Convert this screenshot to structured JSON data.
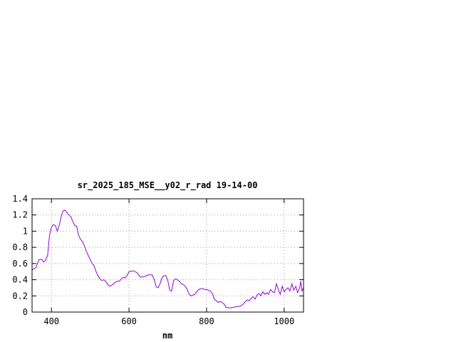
{
  "chart_data": {
    "type": "line",
    "title": "sr_2025_185_MSE__y02_r_rad 19-14-00",
    "xlabel": "nm",
    "ylabel": "",
    "xlim": [
      350,
      1050
    ],
    "ylim": [
      0,
      1.4
    ],
    "x_ticks": [
      400,
      600,
      800,
      1000
    ],
    "y_ticks": [
      0,
      0.2,
      0.4,
      0.6,
      0.8,
      1,
      1.2,
      1.4
    ],
    "x_tick_labels": [
      "400",
      "600",
      "800",
      "1000"
    ],
    "y_tick_labels": [
      "0",
      "0.2",
      "0.4",
      "0.6",
      "0.8",
      "1",
      "1.2",
      "1.4"
    ],
    "grid": true,
    "line_color": "#9400d3",
    "series": [
      {
        "x": [
          350,
          360,
          368,
          375,
          380,
          385,
          390,
          395,
          400,
          405,
          410,
          415,
          420,
          425,
          430,
          435,
          440,
          445,
          450,
          455,
          460,
          465,
          470,
          475,
          480,
          485,
          490,
          495,
          500,
          505,
          510,
          515,
          520,
          525,
          530,
          535,
          540,
          545,
          550,
          555,
          560,
          565,
          570,
          575,
          580,
          585,
          590,
          595,
          600,
          610,
          620,
          630,
          640,
          650,
          660,
          665,
          670,
          675,
          680,
          685,
          690,
          695,
          700,
          705,
          710,
          715,
          720,
          725,
          730,
          735,
          740,
          745,
          750,
          755,
          760,
          765,
          770,
          775,
          780,
          785,
          790,
          795,
          800,
          805,
          810,
          815,
          820,
          825,
          830,
          835,
          840,
          845,
          850,
          860,
          870,
          880,
          885,
          890,
          895,
          900,
          905,
          910,
          915,
          920,
          925,
          930,
          935,
          940,
          945,
          950,
          955,
          960,
          965,
          970,
          975,
          980,
          985,
          990,
          995,
          1000,
          1005,
          1010,
          1015,
          1020,
          1025,
          1030,
          1035,
          1040,
          1043,
          1046,
          1050
        ],
        "y": [
          0.52,
          0.55,
          0.65,
          0.65,
          0.62,
          0.64,
          0.7,
          0.95,
          1.05,
          1.08,
          1.07,
          1.0,
          1.07,
          1.18,
          1.25,
          1.26,
          1.23,
          1.2,
          1.18,
          1.12,
          1.07,
          1.06,
          0.95,
          0.9,
          0.87,
          0.82,
          0.75,
          0.7,
          0.65,
          0.6,
          0.57,
          0.5,
          0.45,
          0.41,
          0.39,
          0.4,
          0.38,
          0.34,
          0.32,
          0.33,
          0.35,
          0.37,
          0.38,
          0.38,
          0.41,
          0.43,
          0.42,
          0.45,
          0.5,
          0.51,
          0.49,
          0.43,
          0.44,
          0.46,
          0.46,
          0.4,
          0.31,
          0.3,
          0.35,
          0.42,
          0.45,
          0.45,
          0.39,
          0.27,
          0.26,
          0.39,
          0.41,
          0.4,
          0.38,
          0.35,
          0.34,
          0.32,
          0.28,
          0.22,
          0.2,
          0.21,
          0.22,
          0.25,
          0.28,
          0.29,
          0.29,
          0.28,
          0.28,
          0.27,
          0.26,
          0.23,
          0.16,
          0.14,
          0.12,
          0.13,
          0.12,
          0.1,
          0.06,
          0.05,
          0.06,
          0.07,
          0.07,
          0.08,
          0.1,
          0.13,
          0.15,
          0.14,
          0.17,
          0.19,
          0.16,
          0.21,
          0.23,
          0.2,
          0.25,
          0.22,
          0.24,
          0.22,
          0.28,
          0.25,
          0.24,
          0.35,
          0.28,
          0.22,
          0.32,
          0.25,
          0.28,
          0.3,
          0.26,
          0.35,
          0.27,
          0.32,
          0.24,
          0.3,
          0.38,
          0.26,
          0.3
        ]
      }
    ]
  }
}
